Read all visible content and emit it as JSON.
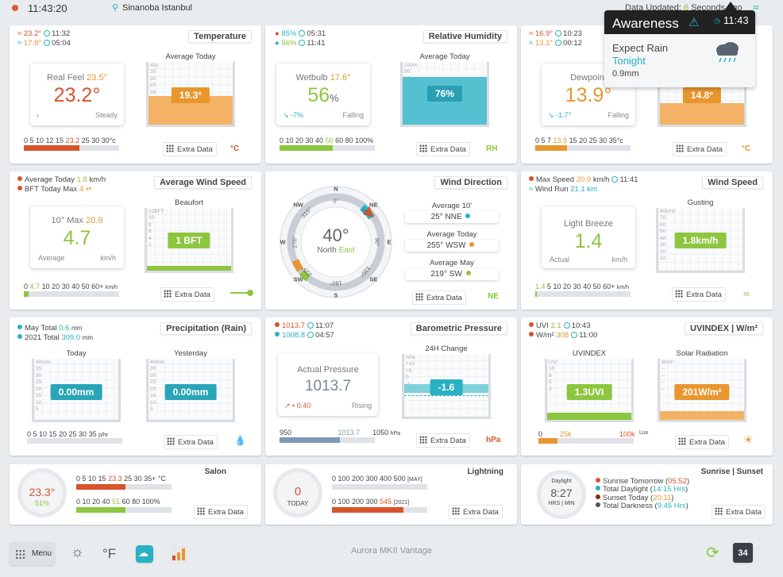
{
  "topbar": {
    "time": "11:43:20",
    "location": "Sinanoba Istanbul",
    "updated_prefix": "Data Updated:",
    "updated_value": "6",
    "updated_suffix": "Seconds ago"
  },
  "popup": {
    "title": "Awareness",
    "time": "11:43",
    "line1": "Expect Rain",
    "line2": "Tonight",
    "amount": "0.9mm"
  },
  "temperature": {
    "title": "Temperature",
    "hi": "23.2°",
    "hi_time": "11:32",
    "lo": "17.8°",
    "lo_time": "05:04",
    "card_label": "Real Feel",
    "card_label_value": "23.5°",
    "main": "23.2°",
    "trend": "Steady",
    "gauge_label": "Average Today",
    "gauge_value": "19.3°",
    "gauge_ticks": [
      "40c",
      "35",
      "30",
      "25",
      "20",
      "15",
      "10",
      "5"
    ],
    "scale": "0 5 10 12 15",
    "scale_hl": "23.2",
    "scale_end": "25 30 30°c",
    "bar_pct": 0.7,
    "extra": "Extra Data",
    "unit": "°C"
  },
  "humidity": {
    "title": "Relative Humidity",
    "hi": "85%",
    "hi_time": "05:31",
    "lo": "56%",
    "lo_time": "11:41",
    "card_label": "Wetbulb",
    "card_label_value": "17.6°",
    "main": "56",
    "main_unit": "%",
    "change": "-7%",
    "trend": "Falling",
    "gauge_label": "Average Today",
    "gauge_value": "76%",
    "gauge_ticks": [
      "100%",
      "80",
      "60",
      "40",
      "20"
    ],
    "scale": "0 10 20 30 40",
    "scale_hl": "56",
    "scale_end": "60 80 100%",
    "bar_pct": 0.56,
    "extra": "Extra Data",
    "unit": "RH"
  },
  "dewpoint": {
    "hi": "16.9°",
    "hi_time": "10:23",
    "lo": "13.1°",
    "lo_time": "00:12",
    "card_label": "Dewpoint",
    "main": "13.9°",
    "change": "-1.7°",
    "trend": "Falling",
    "gauge_value": "14.8°",
    "scale": "0 5 7",
    "scale_hl": "13.9",
    "scale_end": "15 20 25 30 35°c",
    "bar_pct": 0.33,
    "extra": "Extra Data",
    "unit": "°C"
  },
  "wind_avg": {
    "title": "Average Wind Speed",
    "line1_label": "Average Today",
    "line1_value": "1.8",
    "line1_unit": "km/h",
    "line2_label": "BFT Today Max",
    "line2_value": "4",
    "card_label": "10° Max",
    "card_label_value": "20.9",
    "main": "4.7",
    "left": "Average",
    "right": "km/h",
    "gauge_label": "Beaufort",
    "gauge_value": "1 BFT",
    "gauge_ticks": [
      "12BFT",
      "10",
      "8",
      "6",
      "4",
      "2"
    ],
    "scale": "0",
    "scale_hl": "4.7",
    "scale_end": "10 20 30 40 50 60+",
    "scale_unit": "km/h",
    "bar_pct": 0.05,
    "extra": "Extra Data"
  },
  "wind_dir": {
    "title": "Wind Direction",
    "deg": "40°",
    "dir_label": "North",
    "dir_value": "East",
    "compass": [
      "N",
      "NE",
      "E",
      "SE",
      "S",
      "SW",
      "W",
      "NW"
    ],
    "ring": [
      "0°",
      "45°",
      "90°",
      "135°",
      "180°",
      "225°",
      "270°",
      "315°"
    ],
    "b1_label": "Average 10'",
    "b1_value": "25°",
    "b1_dir": "NNE",
    "b2_label": "Average Today",
    "b2_value": "255°",
    "b2_dir": "WSW",
    "b3_label": "Average May",
    "b3_value": "219°",
    "b3_dir": "SW",
    "extra": "Extra Data",
    "unit": "NE"
  },
  "wind_speed": {
    "title": "Wind Speed",
    "line1_label": "Max Speed",
    "line1_value": "20.9",
    "line1_unit": "km/h",
    "line1_time": "11:41",
    "line2_label": "Wind Run",
    "line2_value": "21.1 km",
    "card_label": "Light Breeze",
    "main": "1.4",
    "left": "Actual",
    "right": "km/h",
    "gauge_label": "Gusting",
    "gauge_value": "1.8km/h",
    "gauge_ticks": [
      "80kmh",
      "70",
      "60",
      "50",
      "40",
      "30",
      "20",
      "10"
    ],
    "scale_hl": "1.4",
    "scale_end": "5 10 20 30 40 50 60+",
    "scale_unit": "km/h",
    "bar_pct": 0.02,
    "extra": "Extra Data"
  },
  "rain": {
    "title": "Precipitation (Rain)",
    "line1_label": "May Total",
    "line1_value": "0.6",
    "line1_unit": "mm",
    "line2_label": "2021 Total",
    "line2_value": "309.0",
    "line2_unit": "mm",
    "g1_label": "Today",
    "g1_value": "0.00mm",
    "g2_label": "Yesterday",
    "g2_value": "0.00mm",
    "gauge_ticks": [
      "40mm",
      "35",
      "30",
      "25",
      "20",
      "15",
      "10",
      "5"
    ],
    "scale": "0 5 10 15 20 25 30 35",
    "scale_unit": "p/hr",
    "extra": "Extra Data"
  },
  "pressure": {
    "title": "Barometric Pressure",
    "hi": "1013.7",
    "hi_time": "11:07",
    "lo": "1008.8",
    "lo_time": "04:57",
    "card_label": "Actual Pressure",
    "main": "1013.7",
    "change": "0.40",
    "trend": "Rising",
    "gauge_label": "24H Change",
    "gauge_value": "-1.6",
    "gauge_ticks": [
      "hPa",
      "+10",
      "+5",
      "0",
      "-5",
      "-10"
    ],
    "scale_lo": "950",
    "scale_hl": "1013.7",
    "scale_hi": "1050",
    "scale_unit": "hPa",
    "bar_pct": 0.63,
    "extra": "Extra Data",
    "unit": "hPa"
  },
  "uv": {
    "title": "UVINDEX | W/m²",
    "line1_label": "UVI",
    "line1_value": "2.1",
    "line1_time": "10:43",
    "line2_label": "W/m²",
    "line2_value": "308",
    "line2_time": "11:00",
    "g1_label": "UVINDEX",
    "g1_value": "1.3UVI",
    "g1_ticks": [
      "UVI",
      "10",
      "8",
      "5",
      "3"
    ],
    "g2_label": "Solar Radiation",
    "g2_value": "201W/m²",
    "g2_ticks": [
      "W/m²",
      "--",
      "--",
      "--",
      "--"
    ],
    "scale_lo": "0",
    "scale_mid": "25k",
    "scale_hi": "100k",
    "scale_unit": "Lux",
    "bar_pct": 0.2,
    "extra": "Extra Data"
  },
  "salon": {
    "title": "Salon",
    "temp": "23.3°",
    "hum": "51%",
    "scale1": "0 5 10 15",
    "scale1_hl": "23.3",
    "scale1_end": "25 30 35+ °C",
    "bar1_pct": 0.6,
    "scale2": "0 10 20 40",
    "scale2_hl": "51",
    "scale2_end": "60 80 100%",
    "bar2_pct": 0.5,
    "extra": "Extra Data"
  },
  "lightning": {
    "title": "Lightning",
    "value": "0",
    "label": "TODAY",
    "scale1": "0 100 200 300 400 500",
    "scale1_tag": "[MAY]",
    "bar1_pct": 0.0,
    "scale2": "0 100 200 300",
    "scale2_hl": "545",
    "scale2_tag": "[2021]",
    "bar2_pct": 0.75,
    "extra": "Extra Data"
  },
  "sun": {
    "title": "Sunrise | Sunset",
    "gauge_label": "Daylight",
    "gauge_value": "8:27",
    "gauge_sub": "HRS | MIN",
    "l1_label": "Sunrise Tomorrow",
    "l1_value": "05:52",
    "l2_label": "Total Daylight",
    "l2_value": "14:15 Hrs",
    "l3_label": "Sunset Today",
    "l3_value": "20:11",
    "l4_label": "Total Darkness",
    "l4_value": "9:45 Hrs",
    "extra": "Extra Data"
  },
  "bottom": {
    "menu": "Menu",
    "unit": "°F",
    "brand": "Aurora MKII Vantage",
    "badge": "34"
  },
  "colors": {
    "orange": "#e8962e",
    "red": "#d9532c",
    "green": "#8dc63f",
    "teal": "#2ab0c3",
    "blue": "#7f98b5"
  }
}
